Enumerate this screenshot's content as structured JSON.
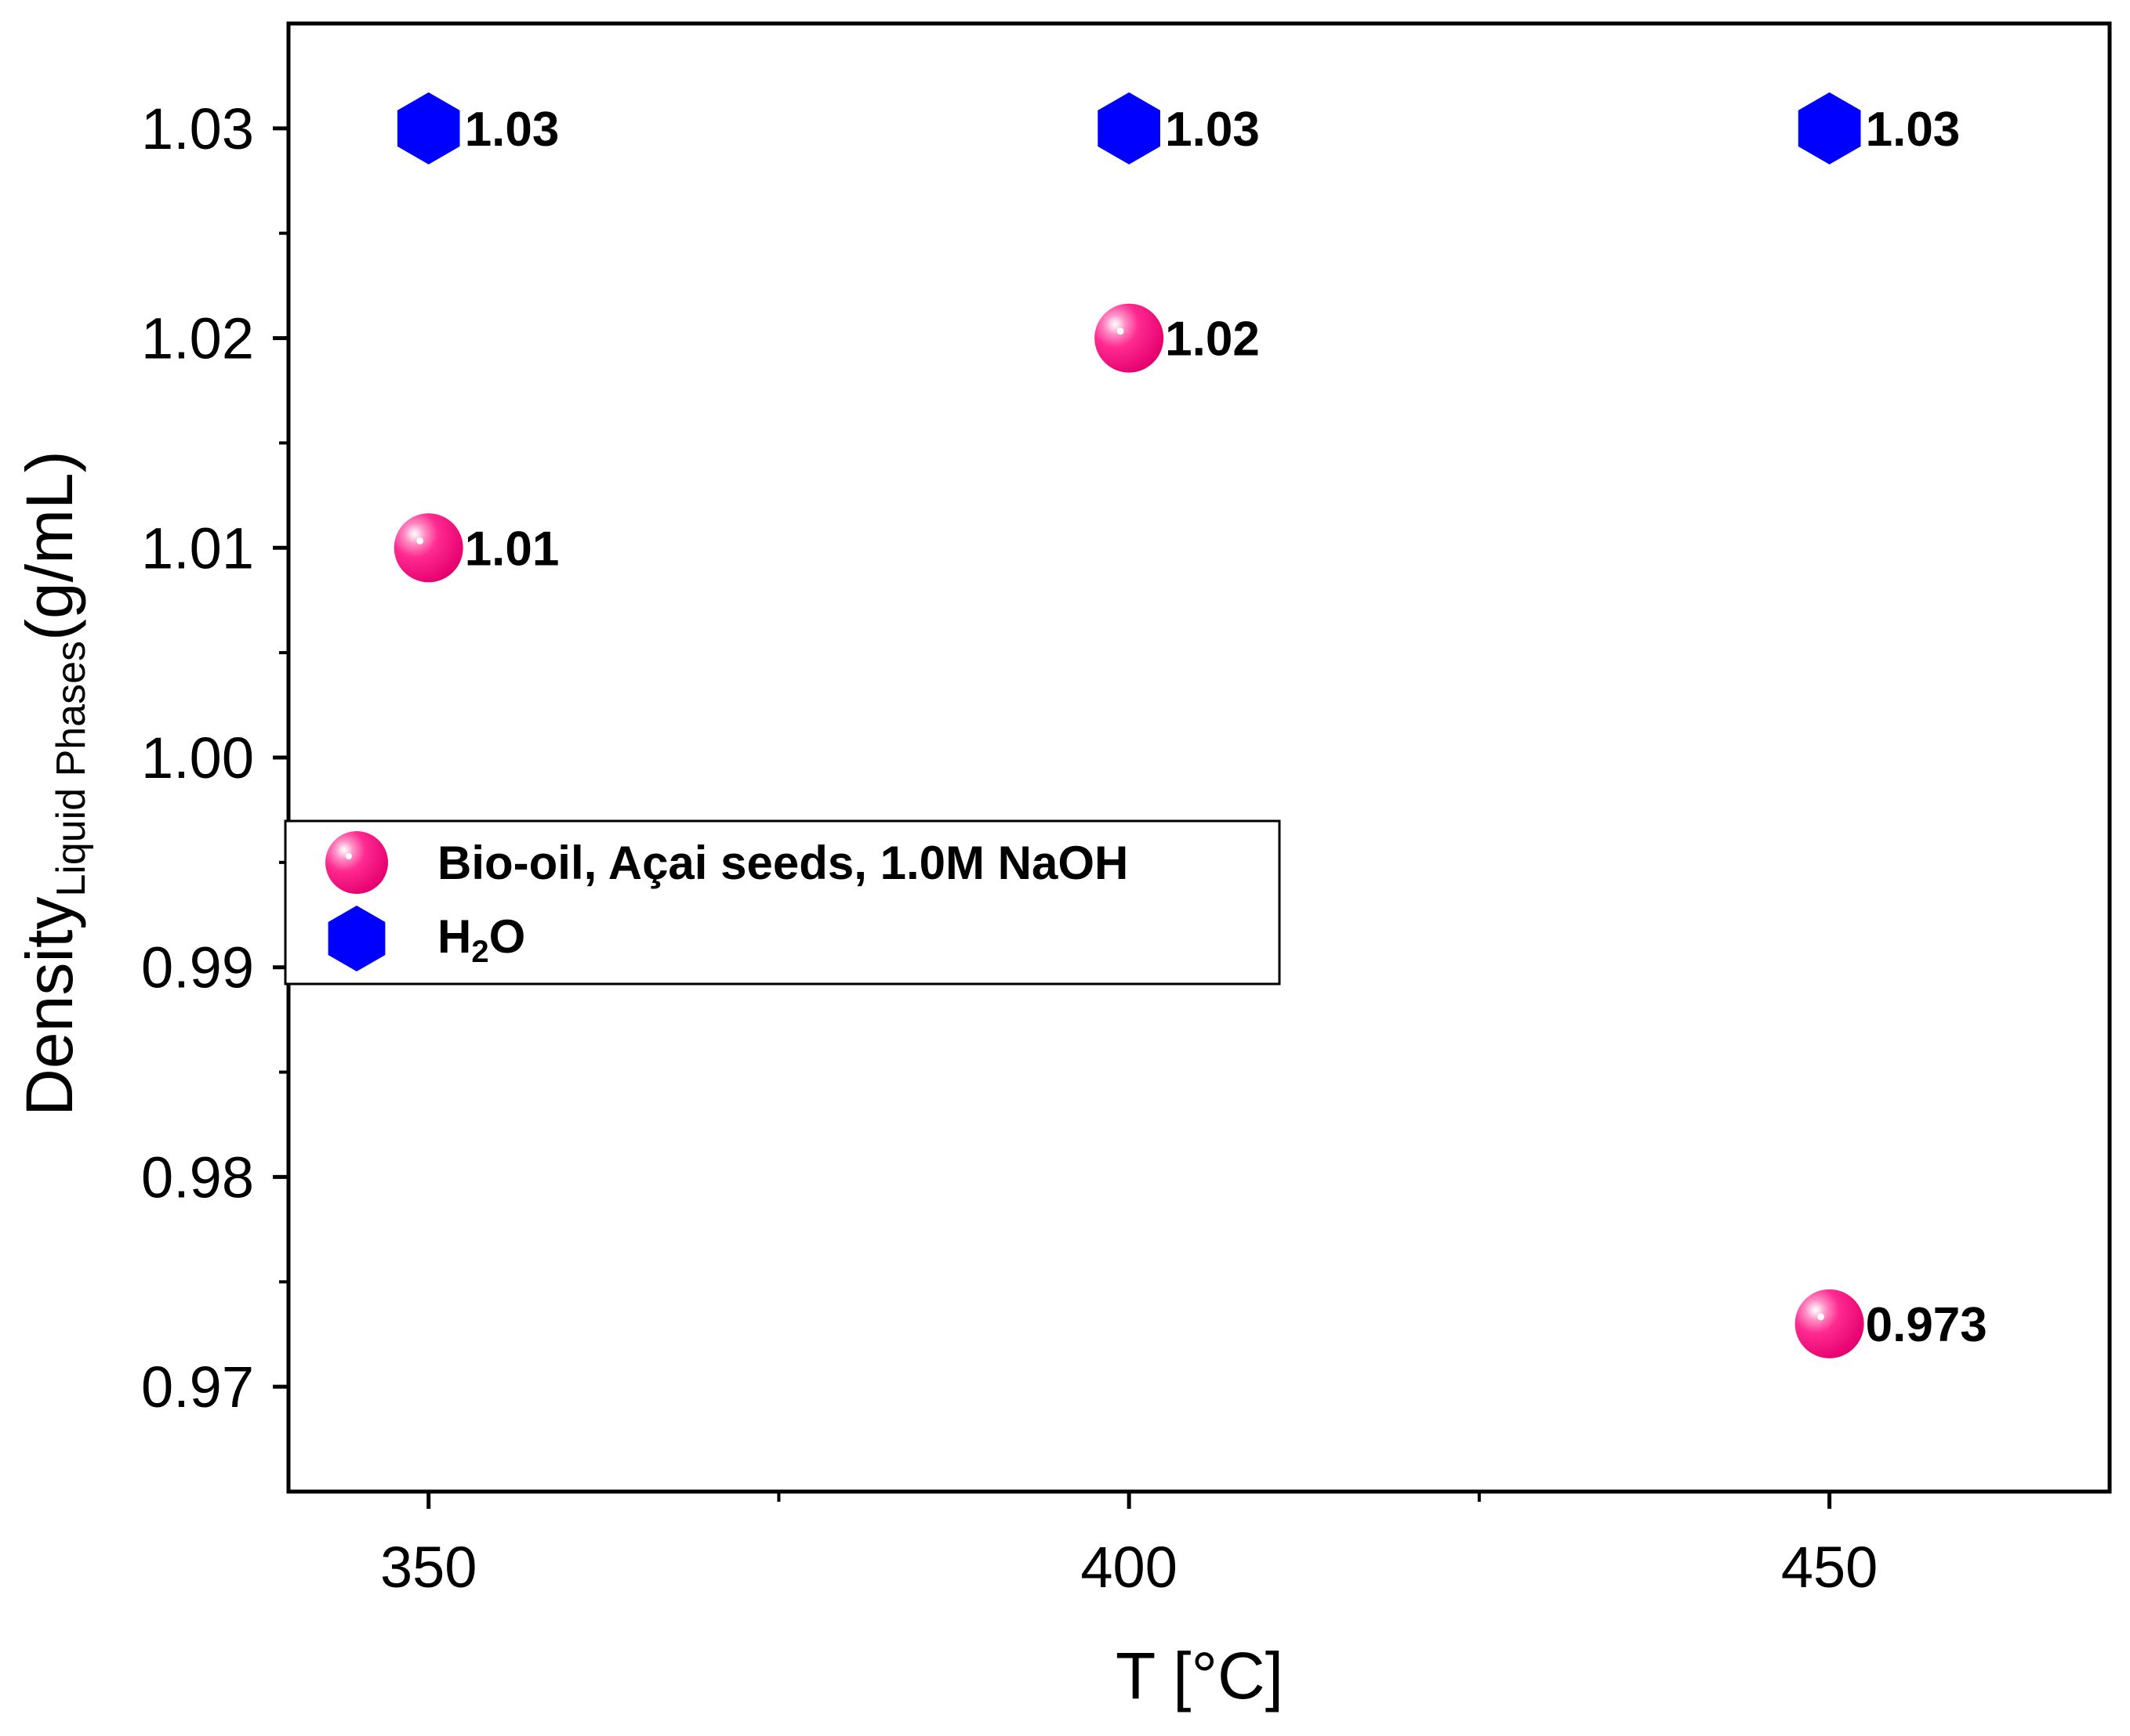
{
  "chart_data": {
    "type": "scatter",
    "title": "",
    "xlabel": "T [°C]",
    "ylabel": {
      "main": "Density",
      "subscript": "Liquid Phases",
      "unit": "(g/mL)"
    },
    "xlim": [
      340,
      470
    ],
    "ylim": [
      0.965,
      1.035
    ],
    "x_major_ticks": [
      350,
      400,
      450
    ],
    "x_minor_ticks": [
      375,
      425
    ],
    "x_tick_labels": [
      "350",
      "400",
      "450"
    ],
    "y_major_ticks": [
      0.97,
      0.98,
      0.99,
      1.0,
      1.01,
      1.02,
      1.03
    ],
    "y_tick_labels": [
      "0.97",
      "0.98",
      "0.99",
      "1.00",
      "1.01",
      "1.02",
      "1.03"
    ],
    "y_minor_ticks": [
      0.975,
      0.985,
      0.995,
      1.005,
      1.015,
      1.025
    ],
    "grid": false,
    "legend_position": "middle-left",
    "series": [
      {
        "name": "Bio-oil, Açai seeds, 1.0M NaOH",
        "marker": "sphere",
        "color": "#ff007f",
        "x": [
          350,
          400,
          450
        ],
        "y": [
          1.01,
          1.02,
          0.973
        ],
        "labels": [
          "1.01",
          "1.02",
          "0.973"
        ]
      },
      {
        "name": "H2O",
        "legend_main": "H",
        "legend_sub": "2",
        "legend_tail": "O",
        "marker": "hexagon",
        "color": "#0000ff",
        "x": [
          350,
          400,
          450
        ],
        "y": [
          1.03,
          1.03,
          1.03
        ],
        "labels": [
          "1.03",
          "1.03",
          "1.03"
        ]
      }
    ]
  }
}
